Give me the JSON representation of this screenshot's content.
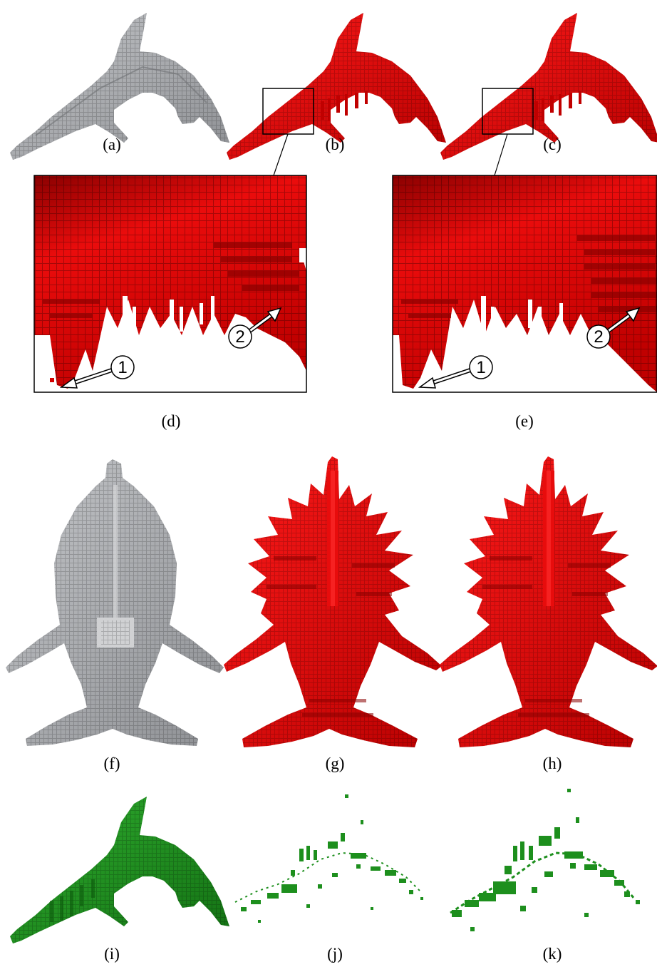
{
  "figure": {
    "captions": [
      "(a)",
      "(b)",
      "(c)",
      "(d)",
      "(e)",
      "(f)",
      "(g)",
      "(h)",
      "(i)",
      "(j)",
      "(k)"
    ],
    "markers": [
      "1",
      "2"
    ]
  },
  "colors": {
    "gray_model": "#a9abae",
    "red_model": "#d40000",
    "red_dark": "#7a0000",
    "green_model": "#1d8f1d",
    "green_dark": "#0c5a0c",
    "outline": "#000000"
  }
}
